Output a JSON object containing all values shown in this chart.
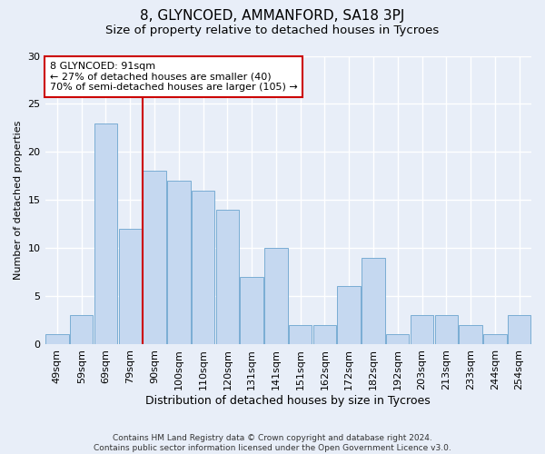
{
  "title1": "8, GLYNCOED, AMMANFORD, SA18 3PJ",
  "title2": "Size of property relative to detached houses in Tycroes",
  "xlabel": "Distribution of detached houses by size in Tycroes",
  "ylabel": "Number of detached properties",
  "categories": [
    "49sqm",
    "59sqm",
    "69sqm",
    "79sqm",
    "90sqm",
    "100sqm",
    "110sqm",
    "120sqm",
    "131sqm",
    "141sqm",
    "151sqm",
    "162sqm",
    "172sqm",
    "182sqm",
    "192sqm",
    "203sqm",
    "213sqm",
    "233sqm",
    "244sqm",
    "254sqm"
  ],
  "values": [
    1,
    3,
    23,
    12,
    18,
    17,
    16,
    14,
    7,
    10,
    2,
    2,
    6,
    9,
    1,
    3,
    3,
    2,
    1,
    3
  ],
  "bar_color": "#c5d8f0",
  "bar_edge_color": "#7aadd4",
  "vline_x_index": 4,
  "vline_color": "#cc0000",
  "annotation_text": "8 GLYNCOED: 91sqm\n← 27% of detached houses are smaller (40)\n70% of semi-detached houses are larger (105) →",
  "annotation_box_facecolor": "#ffffff",
  "annotation_box_edgecolor": "#cc0000",
  "ylim": [
    0,
    30
  ],
  "yticks": [
    0,
    5,
    10,
    15,
    20,
    25,
    30
  ],
  "footer1": "Contains HM Land Registry data © Crown copyright and database right 2024.",
  "footer2": "Contains public sector information licensed under the Open Government Licence v3.0.",
  "bg_color": "#e8eef8",
  "fig_color": "#e8eef8",
  "grid_color": "#ffffff",
  "title1_fontsize": 11,
  "title2_fontsize": 9.5,
  "xlabel_fontsize": 9,
  "ylabel_fontsize": 8,
  "tick_fontsize": 8,
  "annot_fontsize": 8,
  "footer_fontsize": 6.5
}
